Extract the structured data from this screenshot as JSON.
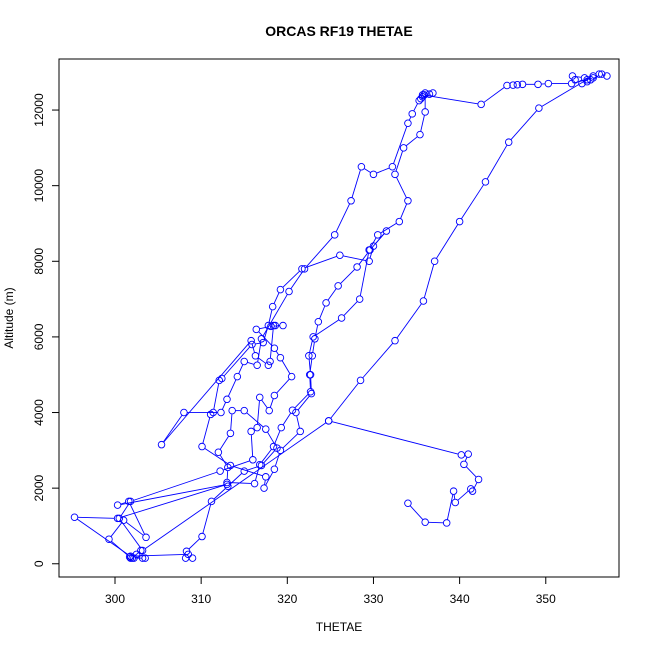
{
  "chart_data": {
    "type": "line",
    "title": "ORCAS RF19 THETAE",
    "xlabel": "THETAE",
    "ylabel": "Altitude (m)",
    "xlim": [
      293.5,
      358.5
    ],
    "ylim": [
      -350,
      13350
    ],
    "x_ticks": [
      300,
      310,
      320,
      330,
      340,
      350
    ],
    "y_ticks": [
      0,
      2000,
      4000,
      6000,
      8000,
      10000,
      12000
    ],
    "grid": false,
    "series_color": "#0000ff",
    "series": [
      {
        "points": [
          [
            301.8,
            150
          ],
          [
            302.2,
            150
          ],
          [
            303.2,
            150
          ],
          [
            303.5,
            150
          ],
          [
            302.0,
            150
          ],
          [
            303.0,
            350
          ],
          [
            302.5,
            250
          ],
          [
            301.7,
            180
          ],
          [
            299.3,
            650
          ],
          [
            301.0,
            1150
          ],
          [
            303.6,
            700
          ],
          [
            301.6,
            1650
          ],
          [
            300.3,
            1550
          ],
          [
            313.0,
            2100
          ],
          [
            300.3,
            1200
          ],
          [
            295.3,
            1230
          ],
          [
            301.8,
            200
          ],
          [
            308.5,
            250
          ],
          [
            309.0,
            150
          ],
          [
            308.2,
            150
          ],
          [
            308.3,
            330
          ],
          [
            310.1,
            720
          ],
          [
            311.2,
            1650
          ],
          [
            313.1,
            2050
          ],
          [
            315.0,
            2450
          ],
          [
            317.0,
            2600
          ],
          [
            318.8,
            3060
          ],
          [
            317.5,
            3560
          ],
          [
            315.0,
            4050
          ],
          [
            313.6,
            4050
          ],
          [
            313.4,
            3450
          ],
          [
            312.0,
            2950
          ],
          [
            313.1,
            2550
          ],
          [
            313.0,
            2150
          ],
          [
            316.2,
            2120
          ],
          [
            316.8,
            2620
          ],
          [
            318.4,
            3100
          ],
          [
            319.3,
            3600
          ],
          [
            320.6,
            4060
          ],
          [
            322.7,
            4550
          ],
          [
            322.6,
            5000
          ],
          [
            322.9,
            5500
          ],
          [
            323.2,
            5950
          ],
          [
            323.6,
            6400
          ],
          [
            324.5,
            6900
          ],
          [
            325.9,
            7350
          ],
          [
            328.1,
            7850
          ],
          [
            329.6,
            8300
          ],
          [
            331.5,
            8800
          ],
          [
            330.0,
            8400
          ],
          [
            329.5,
            8000
          ],
          [
            326.1,
            8160
          ],
          [
            321.7,
            7800
          ],
          [
            319.2,
            7250
          ],
          [
            318.3,
            6800
          ],
          [
            317.8,
            6300
          ],
          [
            317.2,
            5850
          ],
          [
            315.9,
            5800
          ],
          [
            312.4,
            4900
          ],
          [
            312.1,
            4850
          ],
          [
            311.4,
            4000
          ],
          [
            311.1,
            3950
          ],
          [
            310.1,
            3100
          ],
          [
            313.4,
            2600
          ],
          [
            317.5,
            2300
          ],
          [
            317.3,
            2000
          ],
          [
            318.5,
            2500
          ],
          [
            319.2,
            3000
          ],
          [
            321.5,
            3500
          ],
          [
            321.0,
            4000
          ],
          [
            322.8,
            4500
          ],
          [
            322.7,
            5000
          ],
          [
            322.5,
            5500
          ],
          [
            323.0,
            6000
          ],
          [
            326.3,
            6500
          ],
          [
            328.4,
            7000
          ],
          [
            329.5,
            8300
          ],
          [
            330.5,
            8700
          ],
          [
            333.0,
            9050
          ],
          [
            334.0,
            9600
          ],
          [
            332.5,
            10300
          ],
          [
            333.5,
            11000
          ],
          [
            335.4,
            11350
          ],
          [
            336.0,
            11950
          ],
          [
            336.0,
            12450
          ],
          [
            335.9,
            12400
          ],
          [
            335.7,
            12350
          ],
          [
            335.5,
            12300
          ],
          [
            336.5,
            12420
          ],
          [
            336.9,
            12450
          ],
          [
            335.3,
            12250
          ],
          [
            334.5,
            11900
          ],
          [
            334.0,
            11650
          ],
          [
            332.2,
            10500
          ],
          [
            330.0,
            10300
          ],
          [
            328.6,
            10500
          ],
          [
            327.4,
            9600
          ],
          [
            325.5,
            8700
          ],
          [
            322.0,
            7800
          ],
          [
            320.2,
            7200
          ],
          [
            317.0,
            5950
          ],
          [
            316.5,
            5250
          ],
          [
            315.0,
            5350
          ],
          [
            314.2,
            4950
          ],
          [
            313.0,
            4350
          ],
          [
            312.3,
            4000
          ],
          [
            308.0,
            4000
          ],
          [
            305.4,
            3150
          ],
          [
            315.8,
            5900
          ],
          [
            316.3,
            5500
          ],
          [
            317.8,
            5250
          ],
          [
            318.0,
            5350
          ],
          [
            318.4,
            6300
          ],
          [
            318.6,
            6300
          ],
          [
            319.5,
            6300
          ],
          [
            318.1,
            6280
          ],
          [
            316.4,
            6200
          ],
          [
            318.5,
            5700
          ],
          [
            319.2,
            5450
          ],
          [
            320.5,
            4950
          ],
          [
            318.5,
            4450
          ],
          [
            317.9,
            4050
          ],
          [
            316.8,
            4400
          ],
          [
            316.5,
            3600
          ],
          [
            315.8,
            3500
          ],
          [
            316.0,
            2750
          ],
          [
            312.2,
            2450
          ],
          [
            301.8,
            1650
          ],
          [
            300.5,
            1200
          ],
          [
            303.2,
            350
          ],
          [
            324.8,
            3780
          ],
          [
            340.2,
            2880
          ],
          [
            341.0,
            2900
          ],
          [
            340.5,
            2630
          ],
          [
            342.2,
            2230
          ],
          [
            341.5,
            1920
          ],
          [
            341.3,
            1980
          ],
          [
            339.5,
            1620
          ],
          [
            339.3,
            1920
          ],
          [
            338.5,
            1080
          ],
          [
            336.0,
            1100
          ],
          [
            334.0,
            1600
          ]
        ]
      },
      {
        "points": [
          [
            324.8,
            3780
          ],
          [
            328.5,
            4850
          ],
          [
            332.5,
            5900
          ],
          [
            335.8,
            6950
          ],
          [
            337.1,
            8000
          ],
          [
            340.0,
            9050
          ],
          [
            343.0,
            10100
          ],
          [
            345.7,
            11150
          ],
          [
            349.2,
            12050
          ],
          [
            355.5,
            12900
          ],
          [
            356.2,
            12950
          ],
          [
            357.1,
            12900
          ],
          [
            356.5,
            12950
          ],
          [
            355.2,
            12800
          ],
          [
            354.8,
            12750
          ],
          [
            354.2,
            12700
          ],
          [
            353.4,
            12800
          ],
          [
            353.1,
            12900
          ],
          [
            354.5,
            12850
          ],
          [
            354.8,
            12800
          ],
          [
            355.5,
            12850
          ],
          [
            353.0,
            12700
          ],
          [
            350.3,
            12700
          ],
          [
            349.1,
            12680
          ],
          [
            347.3,
            12680
          ],
          [
            346.7,
            12670
          ],
          [
            346.2,
            12660
          ],
          [
            345.5,
            12650
          ],
          [
            342.5,
            12150
          ],
          [
            335.7,
            12400
          ]
        ]
      }
    ]
  }
}
